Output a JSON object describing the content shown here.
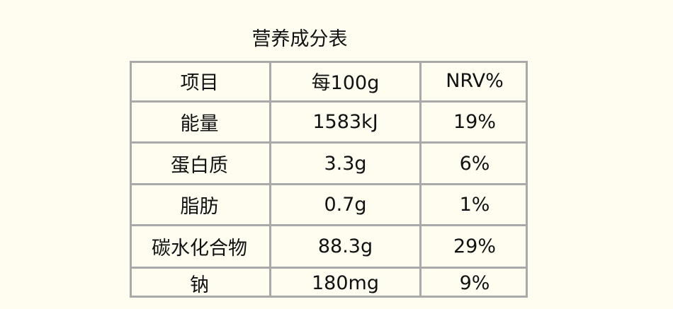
{
  "title": "营养成分表",
  "table": {
    "header": [
      "项目",
      "每100g",
      "NRV%"
    ],
    "rows": [
      [
        "能量",
        "1583kJ",
        "19%"
      ],
      [
        "蛋白质",
        "3.3g",
        "6%"
      ],
      [
        "脂肪",
        "0.7g",
        "1%"
      ],
      [
        "碳水化合物",
        "88.3g",
        "29%"
      ],
      [
        "钠",
        "180mg",
        "9%"
      ]
    ]
  }
}
